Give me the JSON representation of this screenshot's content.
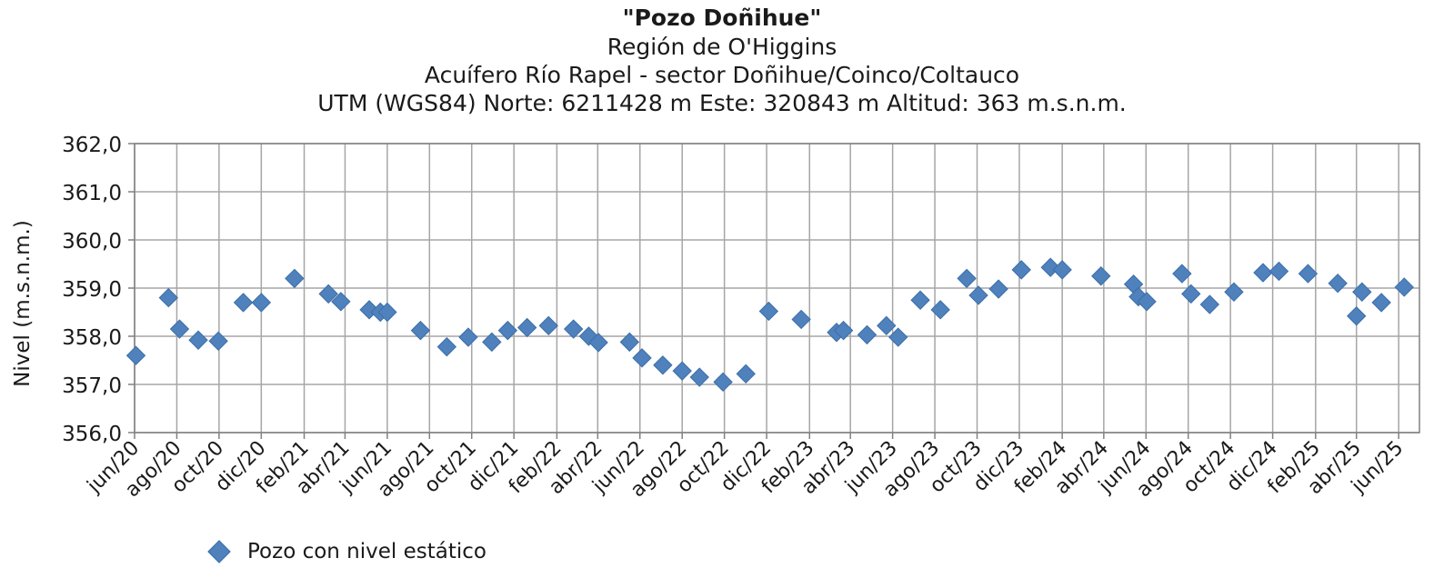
{
  "chart_data": {
    "type": "scatter",
    "title": "\"Pozo Doñihue\"",
    "subtitles": [
      "Región de O'Higgins",
      "Acuífero Río Rapel - sector Doñihue/Coinco/Coltauco",
      "UTM (WGS84) Norte: 6211428 m  Este: 320843 m   Altitud: 363 m.s.n.m."
    ],
    "xlabel": "",
    "ylabel": "Nivel (m.s.n.m.)",
    "ylim": [
      356.0,
      362.0
    ],
    "yticks": [
      "362,0",
      "361,0",
      "360,0",
      "359,0",
      "358,0",
      "357,0",
      "356,0"
    ],
    "ytick_values": [
      362,
      361,
      360,
      359,
      358,
      357,
      356
    ],
    "xlim": [
      "2020-06-01",
      "2025-07-01"
    ],
    "xticks": [
      "jun/20",
      "ago/20",
      "oct/20",
      "dic/20",
      "feb/21",
      "abr/21",
      "jun/21",
      "ago/21",
      "oct/21",
      "dic/21",
      "feb/22",
      "abr/22",
      "jun/22",
      "ago/22",
      "oct/22",
      "dic/22",
      "feb/23",
      "abr/23",
      "jun/23",
      "ago/23",
      "oct/23",
      "dic/23",
      "feb/24",
      "abr/24",
      "jun/24",
      "ago/24",
      "oct/24",
      "dic/24",
      "feb/25",
      "abr/25",
      "jun/25"
    ],
    "xtick_dates": [
      "2020-06-01",
      "2020-08-01",
      "2020-10-01",
      "2020-12-01",
      "2021-02-01",
      "2021-04-01",
      "2021-06-01",
      "2021-08-01",
      "2021-10-01",
      "2021-12-01",
      "2022-02-01",
      "2022-04-01",
      "2022-06-01",
      "2022-08-01",
      "2022-10-01",
      "2022-12-01",
      "2023-02-01",
      "2023-04-01",
      "2023-06-01",
      "2023-08-01",
      "2023-10-01",
      "2023-12-01",
      "2024-02-01",
      "2024-04-01",
      "2024-06-01",
      "2024-08-01",
      "2024-10-01",
      "2024-12-01",
      "2025-02-01",
      "2025-04-01",
      "2025-06-01"
    ],
    "grid": true,
    "legend": "bottom-left",
    "series": [
      {
        "name": "Pozo con nivel estático",
        "color": "#4f81bd",
        "marker": "diamond",
        "points": [
          {
            "x": "2020-06-03",
            "y": 357.6
          },
          {
            "x": "2020-07-20",
            "y": 358.8
          },
          {
            "x": "2020-08-05",
            "y": 358.15
          },
          {
            "x": "2020-09-01",
            "y": 357.92
          },
          {
            "x": "2020-09-30",
            "y": 357.9
          },
          {
            "x": "2020-11-05",
            "y": 358.7
          },
          {
            "x": "2020-12-01",
            "y": 358.7
          },
          {
            "x": "2021-01-18",
            "y": 359.2
          },
          {
            "x": "2021-03-08",
            "y": 358.88
          },
          {
            "x": "2021-03-26",
            "y": 358.72
          },
          {
            "x": "2021-05-06",
            "y": 358.55
          },
          {
            "x": "2021-05-22",
            "y": 358.5
          },
          {
            "x": "2021-06-01",
            "y": 358.5
          },
          {
            "x": "2021-07-19",
            "y": 358.12
          },
          {
            "x": "2021-08-26",
            "y": 357.78
          },
          {
            "x": "2021-09-26",
            "y": 357.98
          },
          {
            "x": "2021-10-30",
            "y": 357.88
          },
          {
            "x": "2021-11-22",
            "y": 358.12
          },
          {
            "x": "2021-12-20",
            "y": 358.18
          },
          {
            "x": "2022-01-20",
            "y": 358.22
          },
          {
            "x": "2022-02-25",
            "y": 358.15
          },
          {
            "x": "2022-03-19",
            "y": 358.0
          },
          {
            "x": "2022-04-02",
            "y": 357.87
          },
          {
            "x": "2022-05-17",
            "y": 357.88
          },
          {
            "x": "2022-06-04",
            "y": 357.55
          },
          {
            "x": "2022-07-04",
            "y": 357.4
          },
          {
            "x": "2022-08-01",
            "y": 357.28
          },
          {
            "x": "2022-08-26",
            "y": 357.15
          },
          {
            "x": "2022-09-29",
            "y": 357.05
          },
          {
            "x": "2022-11-01",
            "y": 357.22
          },
          {
            "x": "2022-12-04",
            "y": 358.52
          },
          {
            "x": "2023-01-20",
            "y": 358.35
          },
          {
            "x": "2023-03-12",
            "y": 358.08
          },
          {
            "x": "2023-03-22",
            "y": 358.12
          },
          {
            "x": "2023-04-25",
            "y": 358.03
          },
          {
            "x": "2023-05-23",
            "y": 358.22
          },
          {
            "x": "2023-06-09",
            "y": 357.98
          },
          {
            "x": "2023-07-11",
            "y": 358.75
          },
          {
            "x": "2023-08-09",
            "y": 358.55
          },
          {
            "x": "2023-09-16",
            "y": 359.2
          },
          {
            "x": "2023-10-03",
            "y": 358.85
          },
          {
            "x": "2023-11-01",
            "y": 358.98
          },
          {
            "x": "2023-12-04",
            "y": 359.38
          },
          {
            "x": "2024-01-15",
            "y": 359.43
          },
          {
            "x": "2024-02-01",
            "y": 359.38
          },
          {
            "x": "2024-03-28",
            "y": 359.25
          },
          {
            "x": "2024-05-14",
            "y": 359.08
          },
          {
            "x": "2024-05-21",
            "y": 358.82
          },
          {
            "x": "2024-06-02",
            "y": 358.72
          },
          {
            "x": "2024-07-23",
            "y": 359.3
          },
          {
            "x": "2024-08-05",
            "y": 358.88
          },
          {
            "x": "2024-09-01",
            "y": 358.66
          },
          {
            "x": "2024-10-06",
            "y": 358.92
          },
          {
            "x": "2024-11-17",
            "y": 359.32
          },
          {
            "x": "2024-12-10",
            "y": 359.35
          },
          {
            "x": "2025-01-21",
            "y": 359.3
          },
          {
            "x": "2025-03-05",
            "y": 359.1
          },
          {
            "x": "2025-04-01",
            "y": 358.42
          },
          {
            "x": "2025-04-09",
            "y": 358.92
          },
          {
            "x": "2025-05-07",
            "y": 358.7
          },
          {
            "x": "2025-06-09",
            "y": 359.02
          }
        ]
      }
    ]
  }
}
